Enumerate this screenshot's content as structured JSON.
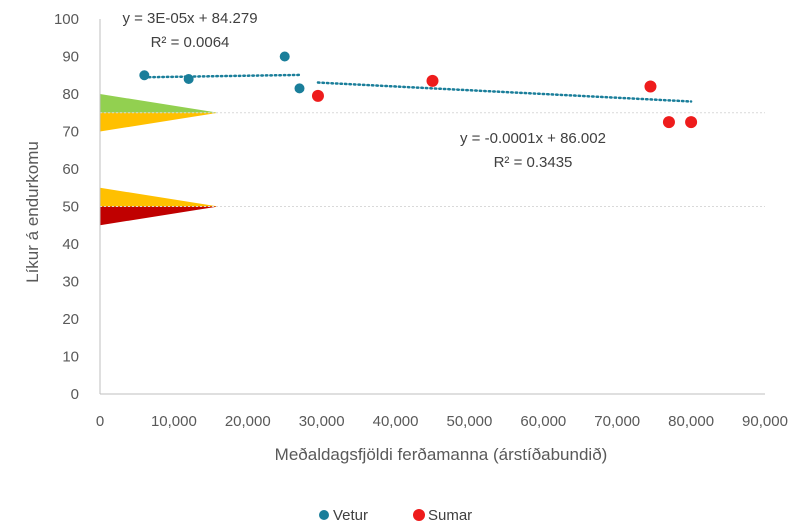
{
  "chart_data": {
    "type": "scatter",
    "xlabel": "Meðaldagsfjöldi ferðamanna (árstíðabundið)",
    "ylabel": "Líkur á endurkomu",
    "xlim": [
      0,
      90000
    ],
    "ylim": [
      0,
      100
    ],
    "x_ticks": [
      0,
      10000,
      20000,
      30000,
      40000,
      50000,
      60000,
      70000,
      80000,
      90000
    ],
    "x_tick_labels": [
      "0",
      "10,000",
      "20,000",
      "30,000",
      "40,000",
      "50,000",
      "60,000",
      "70,000",
      "80,000",
      "90,000"
    ],
    "y_ticks": [
      0,
      10,
      20,
      30,
      40,
      50,
      60,
      70,
      80,
      90,
      100
    ],
    "y_tick_labels": [
      "0",
      "10",
      "20",
      "30",
      "40",
      "50",
      "60",
      "70",
      "80",
      "90",
      "100"
    ],
    "reference_lines_y": [
      75,
      50
    ],
    "grid": false,
    "legend_position": "bottom",
    "series": [
      {
        "name": "Vetur",
        "color": "#1a7e9a",
        "points": [
          [
            6000,
            85
          ],
          [
            12000,
            84
          ],
          [
            25000,
            90
          ],
          [
            27000,
            81.5
          ]
        ],
        "trendline": {
          "x_from": 6000,
          "x_to": 27000,
          "slope": 3e-05,
          "intercept": 84.279
        },
        "equation": "y = 3E-05x + 84.279",
        "r2": "R² = 0.0064"
      },
      {
        "name": "Sumar",
        "color": "#ee1c1c",
        "points": [
          [
            29500,
            79.5
          ],
          [
            45000,
            83.5
          ],
          [
            74500,
            82
          ],
          [
            77000,
            72.5
          ],
          [
            80000,
            72.5
          ]
        ],
        "trendline": {
          "x_from": 29500,
          "x_to": 80000,
          "slope": -0.0001,
          "intercept": 86.002
        },
        "equation": "y = -0.0001x + 86.002",
        "r2": "R² = 0.3435"
      }
    ],
    "threshold_markers": [
      {
        "y_center": 75,
        "upper_color": "#92d050",
        "lower_color": "#ffc000",
        "half_height": 5,
        "tip_x": 16000
      },
      {
        "y_center": 50,
        "upper_color": "#ffc000",
        "lower_color": "#c00000",
        "half_height": 5,
        "tip_x": 16000
      }
    ],
    "colors": {
      "axis": "#bfbfbf",
      "reference": "#d9d9d9",
      "trend": "#1a7e9a"
    }
  }
}
